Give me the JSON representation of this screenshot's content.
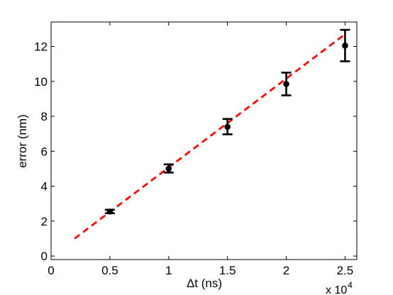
{
  "chart_data": {
    "type": "scatter",
    "title": "",
    "xlabel": "Δt (ns)",
    "ylabel": "error (nm)",
    "x_multiplier": {
      "base": "x 10",
      "exponent": "4"
    },
    "xlim": [
      0,
      2.6
    ],
    "ylim": [
      -0.2,
      13.4
    ],
    "xticks": [
      0,
      0.5,
      1,
      1.5,
      2,
      2.5
    ],
    "xtick_labels": [
      "0",
      "0.5",
      "1",
      "1.5",
      "2",
      "2.5"
    ],
    "yticks": [
      0,
      2,
      4,
      6,
      8,
      10,
      12
    ],
    "ytick_labels": [
      "0",
      "2",
      "4",
      "6",
      "8",
      "10",
      "12"
    ],
    "grid": false,
    "series": [
      {
        "kind": "errorbar",
        "color": "#000000",
        "x": [
          0.5,
          1.0,
          1.5,
          2.0,
          2.5
        ],
        "y": [
          2.55,
          5.0,
          7.4,
          9.85,
          12.05
        ],
        "yerr_low": [
          2.45,
          4.78,
          6.97,
          9.2,
          11.15
        ],
        "yerr_high": [
          2.65,
          5.25,
          7.85,
          10.5,
          12.95
        ]
      },
      {
        "kind": "fit-line",
        "style": "dashed",
        "color": "#ff0000",
        "x": [
          0.2,
          2.5
        ],
        "y": [
          1.0,
          12.7
        ]
      }
    ]
  }
}
